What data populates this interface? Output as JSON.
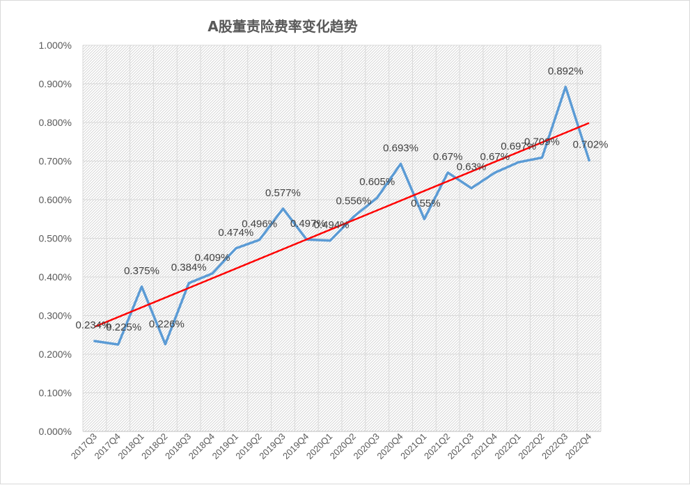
{
  "chart_data": {
    "type": "line",
    "title": "A股董责险费率变化趋势",
    "xlabel": "",
    "ylabel": "",
    "ylim": [
      0,
      1.0
    ],
    "yticks": [
      "0.000%",
      "0.100%",
      "0.200%",
      "0.300%",
      "0.400%",
      "0.500%",
      "0.600%",
      "0.700%",
      "0.800%",
      "0.900%",
      "1.000%"
    ],
    "grid": true,
    "legend": "none",
    "categories": [
      "2017Q3",
      "2017Q4",
      "2018Q1",
      "2018Q2",
      "2018Q3",
      "2018Q4",
      "2019Q1",
      "2019Q2",
      "2019Q3",
      "2019Q4",
      "2020Q1",
      "2020Q2",
      "2020Q3",
      "2020Q4",
      "2021Q1",
      "2021Q2",
      "2021Q3",
      "2021Q4",
      "2022Q1",
      "2022Q2",
      "2022Q3",
      "2022Q4"
    ],
    "series": [
      {
        "color": "#5b9bd5",
        "values": [
          0.234,
          0.225,
          0.375,
          0.226,
          0.384,
          0.409,
          0.474,
          0.496,
          0.577,
          0.497,
          0.494,
          0.556,
          0.605,
          0.693,
          0.55,
          0.67,
          0.63,
          0.67,
          0.697,
          0.709,
          0.892,
          0.702
        ],
        "labels": [
          "0.234%",
          "0.225%",
          "0.375%",
          "0.226%",
          "0.384%",
          "0.409%",
          "0.474%",
          "0.496%",
          "0.577%",
          "0.497%",
          "0.494%",
          "0.556%",
          "0.605%",
          "0.693%",
          "0.55%",
          "0.67%",
          "0.63%",
          "0.67%",
          "0.697%",
          "0.709%",
          "0.892%",
          "0.702%"
        ]
      }
    ],
    "trendline": {
      "type": "linear",
      "color": "#ff0000"
    }
  }
}
